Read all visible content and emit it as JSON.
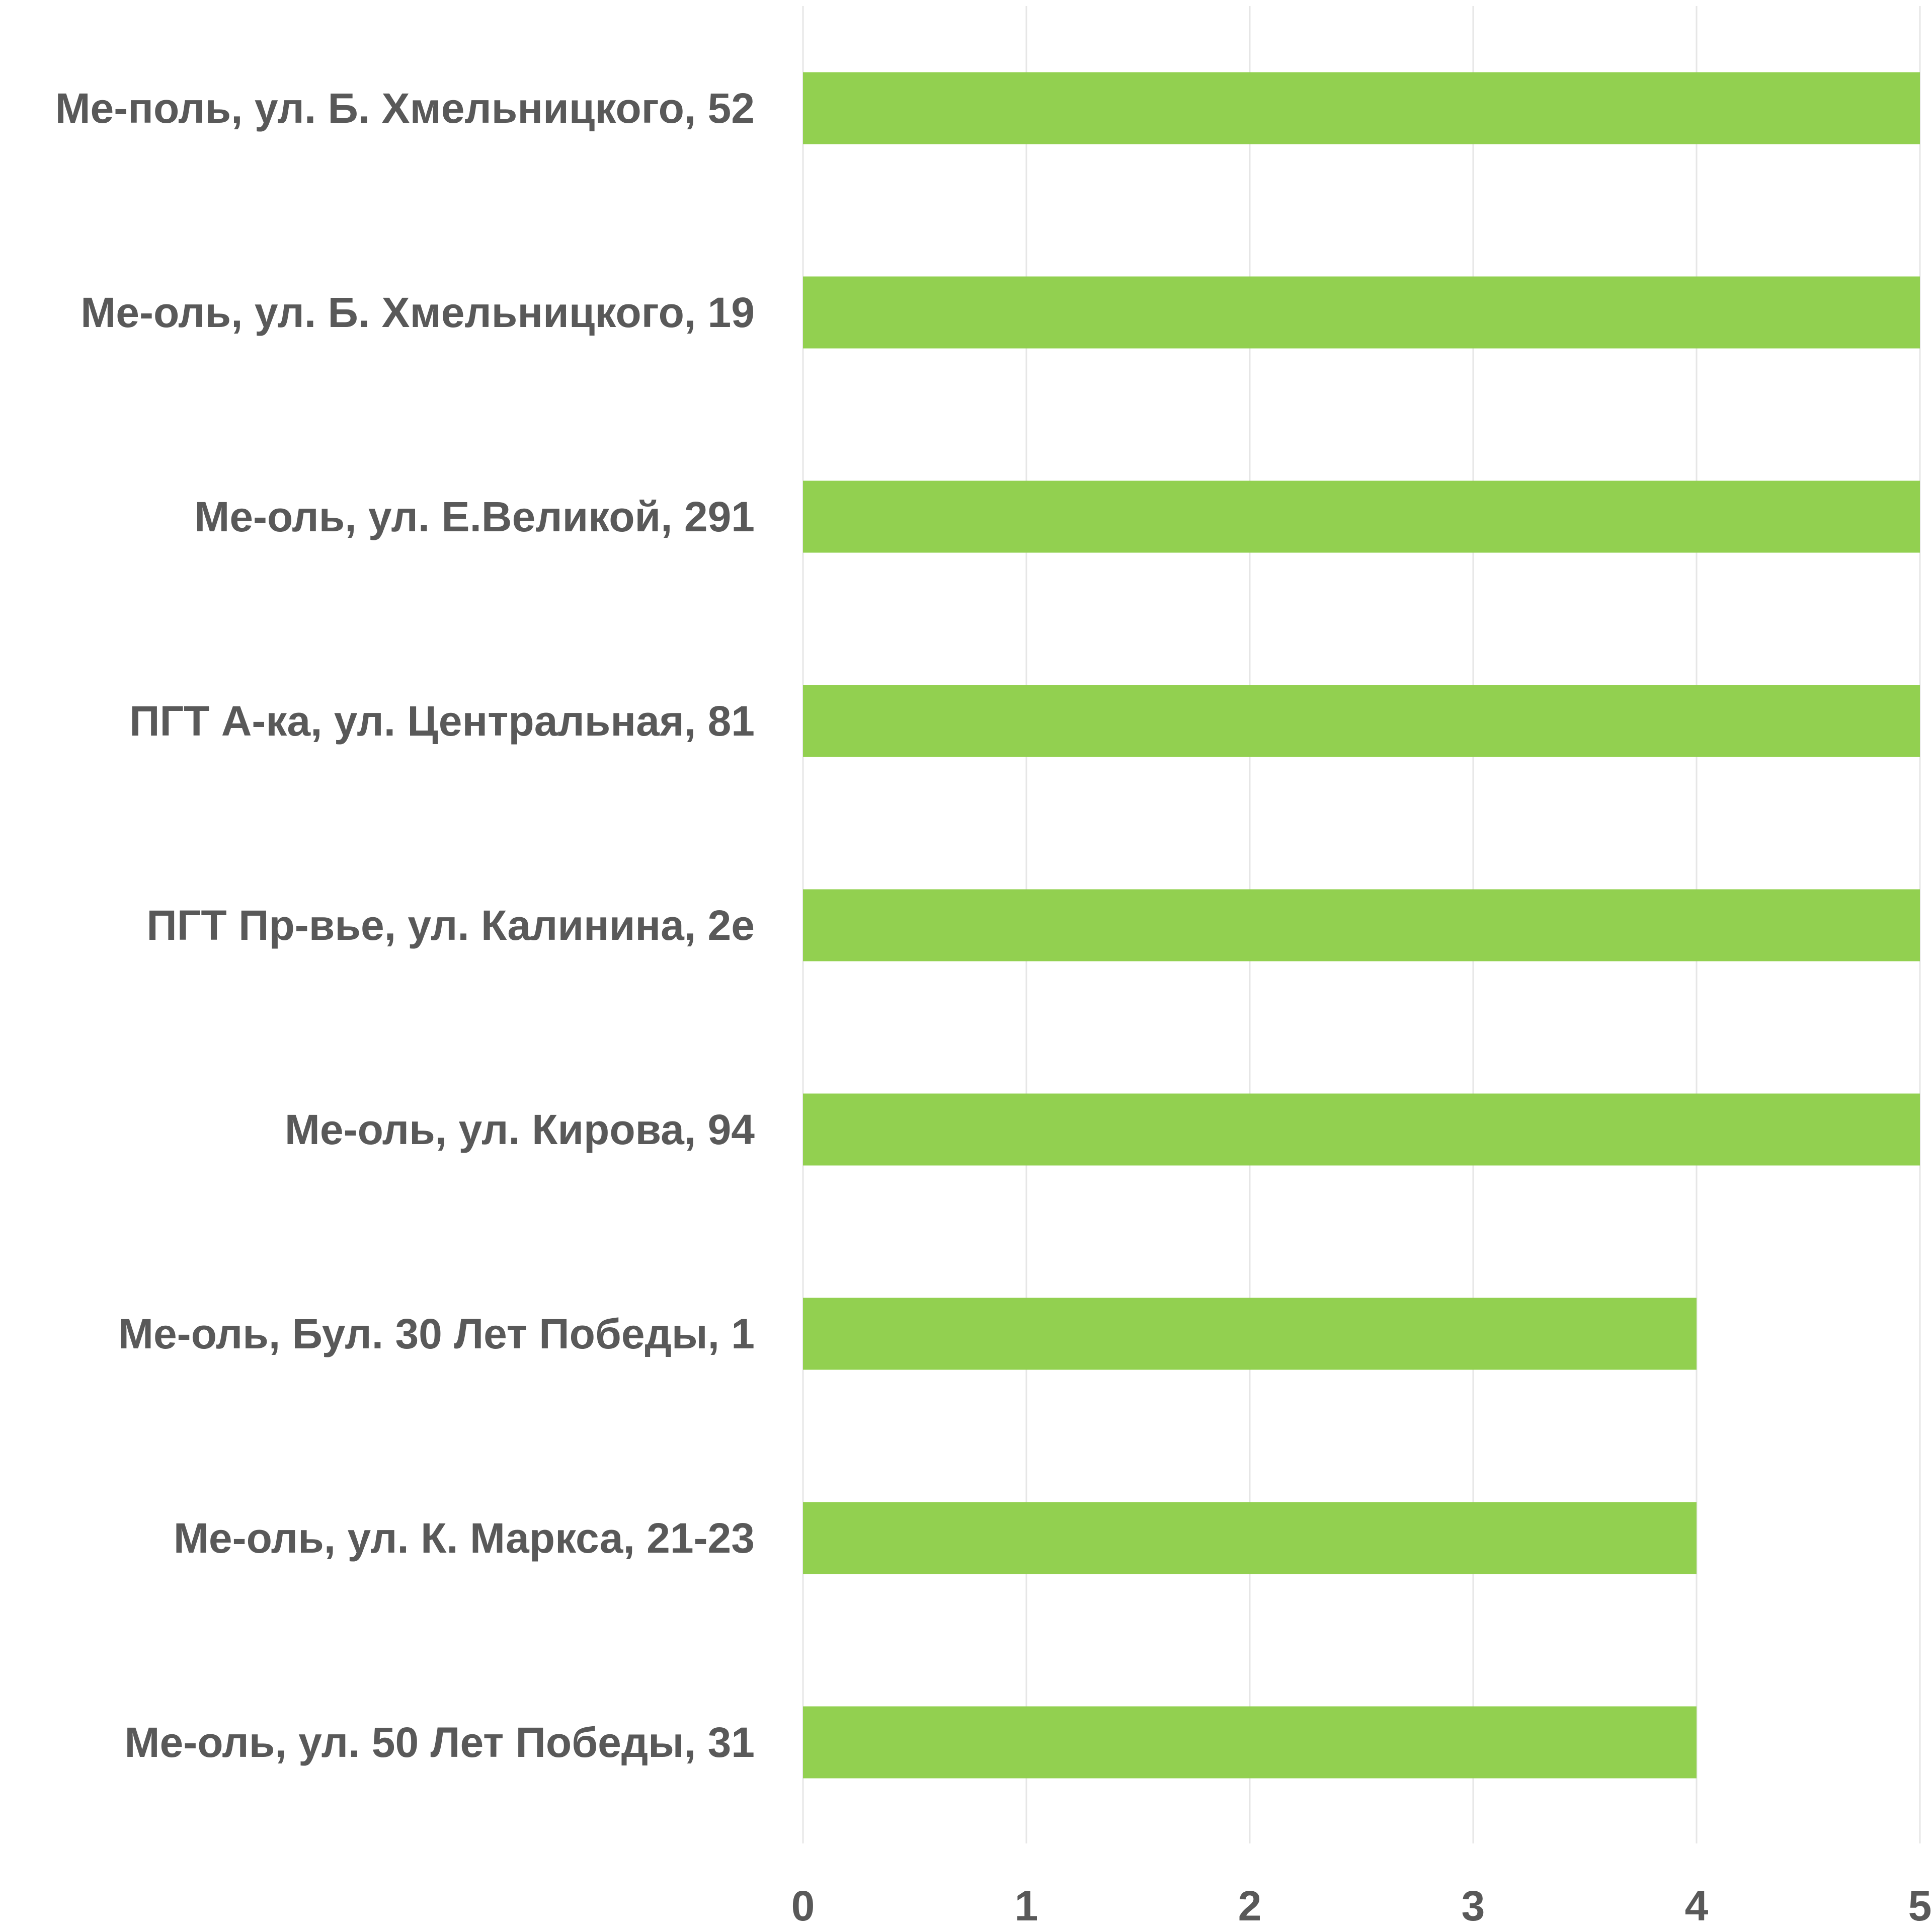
{
  "chart_data": {
    "type": "bar",
    "orientation": "horizontal",
    "categories": [
      "Ме-поль, ул. Б. Хмельницкого, 52",
      "Ме-оль, ул. Б. Хмельницкого, 19",
      "Ме-оль, ул. Е.Великой, 291",
      "ПГТ А-ка, ул. Центральная, 81",
      "ПГТ Пр-вье, ул. Калинина, 2е",
      "Ме-оль, ул. Кирова, 94",
      "Ме-оль, Бул. 30 Лет Победы, 1",
      "Ме-оль, ул. К. Маркса, 21-23",
      "Ме-оль, ул. 50 Лет Победы, 31"
    ],
    "values": [
      5,
      5,
      5,
      5,
      5,
      5,
      4,
      4,
      4
    ],
    "xlim": [
      0,
      5
    ],
    "xticks": [
      "0",
      "1",
      "2",
      "3",
      "4",
      "5"
    ],
    "title": "",
    "xlabel": "",
    "ylabel": "",
    "grid": true,
    "bar_color": "#92d050",
    "text_color": "#595959",
    "grid_color": "#e6e6e6"
  }
}
